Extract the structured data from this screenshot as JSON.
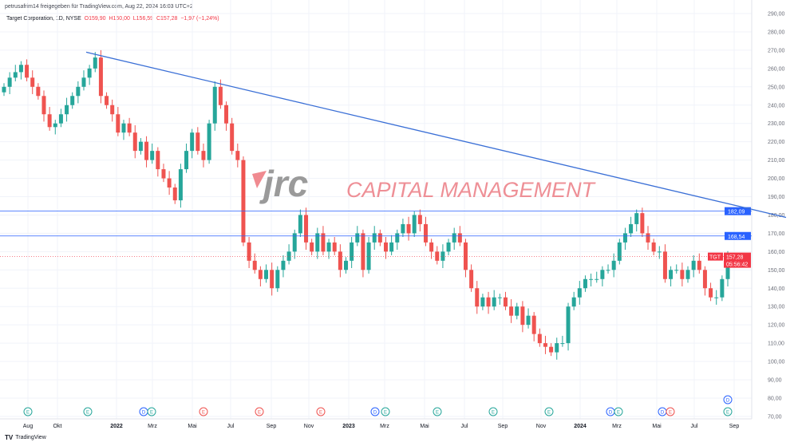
{
  "header": {
    "shared_by": "petrusafrim14 freigegeben für TradingView.com, Aug 22, 2024 16:03 UTC+2"
  },
  "legend": {
    "symbol": "Target Corporation, 1D, NYSE",
    "open": "O159,90",
    "high": "H160,00",
    "low": "L156,59",
    "close": "C157,28",
    "change": "−1,97 (−1,24%)"
  },
  "watermark": {
    "logo": "jrc",
    "text": "CAPITAL MANAGEMENT"
  },
  "footer": {
    "brand": "TradingView",
    "brand_icon": "tradingview-logo-icon"
  },
  "colors": {
    "up": "#26a69a",
    "down": "#ef5350",
    "line": "#2962ff",
    "trend": "#3a6fd6",
    "label_red": "#f23645"
  },
  "chart_data": {
    "type": "candlestick",
    "title": "Target Corporation, 1D, NYSE",
    "ylim": [
      70,
      290
    ],
    "y_ticks": [
      "290,00",
      "280,00",
      "270,00",
      "260,00",
      "250,00",
      "240,00",
      "230,00",
      "220,00",
      "210,00",
      "200,00",
      "190,00",
      "180,00",
      "170,00",
      "160,00",
      "150,00",
      "140,00",
      "130,00",
      "120,00",
      "110,00",
      "100,00",
      "90,00",
      "80,00",
      "70,00"
    ],
    "x_ticks": [
      "Aug",
      "Okt",
      "2022",
      "Mrz",
      "Mai",
      "Jul",
      "Sep",
      "Nov",
      "2023",
      "Mrz",
      "Mai",
      "Jul",
      "Sep",
      "Nov",
      "2024",
      "Mrz",
      "Mai",
      "Jul",
      "Sep"
    ],
    "closes": [
      250,
      255,
      258,
      262,
      255,
      250,
      245,
      235,
      228,
      230,
      235,
      240,
      245,
      250,
      255,
      260,
      266,
      245,
      240,
      235,
      225,
      230,
      225,
      215,
      220,
      210,
      215,
      205,
      200,
      195,
      188,
      205,
      215,
      225,
      215,
      210,
      230,
      250,
      240,
      230,
      215,
      210,
      165,
      155,
      150,
      145,
      150,
      140,
      150,
      155,
      160,
      170,
      180,
      165,
      160,
      170,
      160,
      165,
      160,
      150,
      155,
      165,
      170,
      150,
      165,
      170,
      165,
      160,
      165,
      170,
      175,
      170,
      180,
      175,
      165,
      160,
      155,
      160,
      165,
      170,
      165,
      150,
      140,
      130,
      135,
      130,
      135,
      135,
      130,
      125,
      130,
      120,
      125,
      115,
      110,
      108,
      105,
      110,
      110,
      130,
      135,
      140,
      145,
      145,
      145,
      150,
      150,
      155,
      165,
      170,
      175,
      181,
      170,
      165,
      160,
      160,
      145,
      150,
      150,
      145,
      150,
      155,
      150,
      140,
      135,
      135,
      145,
      157.28
    ],
    "horizontal_lines": [
      {
        "price": 182.09,
        "label": "182,09"
      },
      {
        "price": 168.54,
        "label": "168,54"
      }
    ],
    "trendline": {
      "start_price": 268.9,
      "end_price": 180
    },
    "last_price": {
      "symbol": "TGT",
      "price": "157,28",
      "countdown": "05:56:42"
    },
    "events": [
      {
        "kind": "E",
        "color": "up"
      },
      {
        "kind": "E",
        "color": "up"
      },
      {
        "kind": "D",
        "color": "blue"
      },
      {
        "kind": "E",
        "color": "up"
      },
      {
        "kind": "E",
        "color": "down"
      },
      {
        "kind": "E",
        "color": "down"
      },
      {
        "kind": "E",
        "color": "down"
      },
      {
        "kind": "D",
        "color": "blue"
      },
      {
        "kind": "E",
        "color": "up"
      },
      {
        "kind": "E",
        "color": "up"
      },
      {
        "kind": "E",
        "color": "up"
      },
      {
        "kind": "E",
        "color": "up"
      },
      {
        "kind": "D",
        "color": "blue"
      },
      {
        "kind": "E",
        "color": "up"
      },
      {
        "kind": "D",
        "color": "blue"
      },
      {
        "kind": "E",
        "color": "down"
      },
      {
        "kind": "E",
        "color": "up"
      },
      {
        "kind": "D",
        "color": "blue"
      }
    ]
  }
}
